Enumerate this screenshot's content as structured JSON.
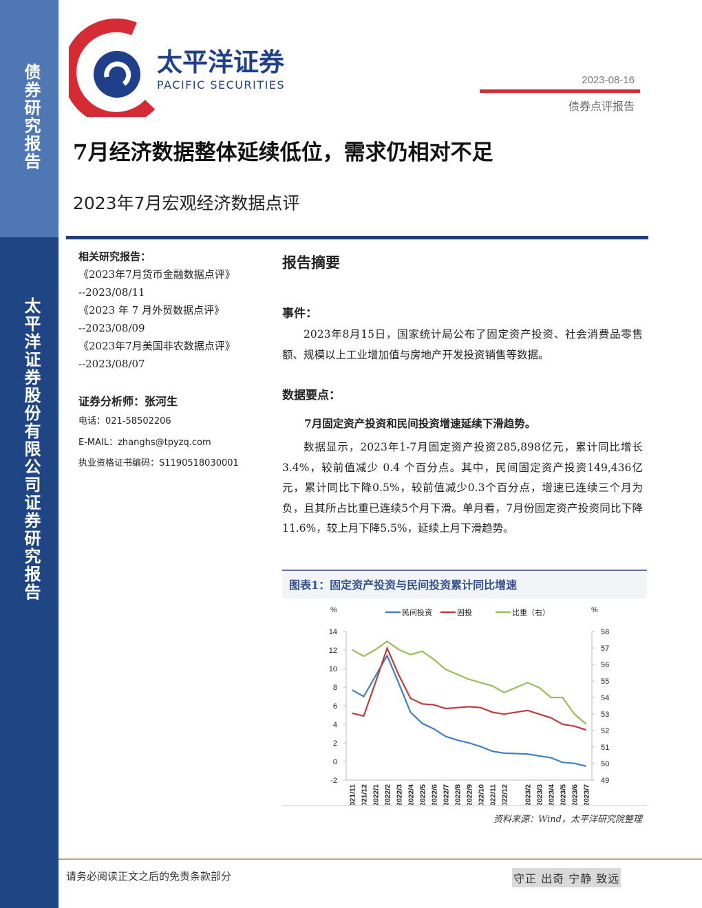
{
  "sidebar": {
    "top": "债券研究报告",
    "bottom": "太平洋证券股份有限公司证券研究报告"
  },
  "logo": {
    "cn": "太平洋证券",
    "en": "PACIFIC SECURITIES"
  },
  "header": {
    "date": "2023-08-16",
    "type": "债券点评报告"
  },
  "title": "7月经济数据整体延续低位，需求仍相对不足",
  "subtitle": "2023年7月宏观经济数据点评",
  "related": {
    "heading": "相关研究报告：",
    "items": [
      {
        "title": "《2023年7月货币金融数据点评》",
        "date": "--2023/08/11"
      },
      {
        "title": "《2023 年 7 月外贸数据点评》",
        "date": "--2023/08/09"
      },
      {
        "title": "《2023年7月美国非农数据点评》",
        "date": "--2023/08/07"
      }
    ]
  },
  "analyst": {
    "name": "证券分析师：张河生",
    "phone": "电话：021-58502206",
    "email": "E-MAIL：zhanghs@tpyzq.com",
    "license": "执业资格证书编码：S1190518030001"
  },
  "summary": {
    "heading": "报告摘要",
    "event_heading": "事件：",
    "event": "2023年8月15日，国家统计局公布了固定资产投资、社会消费品零售额、规模以上工业增加值与房地产开发投资销售等数据。",
    "points_heading": "数据要点：",
    "point1": "7月固定资产投资和民间投资增速延续下滑趋势。",
    "point1_text": "数据显示，2023年1-7月固定资产投资285,898亿元，累计同比增长 3.4%，较前值减少 0.4 个百分点。其中，民间固定资产投资149,436亿元，累计同比下降0.5%，较前值减少0.3个百分点，增速已连续三个月为负，且其所占比重已连续5个月下滑。单月看，7月份固定资产投资同比下降11.6%，较上月下降5.5%，延续上月下滑趋势。"
  },
  "figure": {
    "caption": "图表1：固定资产投资与民间投资累计同比增速",
    "source": "资料来源：Wind，太平洋研究院整理"
  },
  "chart_data": {
    "type": "line",
    "y_unit": "%",
    "y2_unit": "%",
    "categories": [
      "2021/11",
      "2021/12",
      "2022/1",
      "2022/2",
      "2022/3",
      "2022/4",
      "2022/5",
      "2022/6",
      "2022/7",
      "2022/8",
      "2022/9",
      "2022/10",
      "2022/11",
      "2022/12",
      null,
      "2023/2",
      "2023/3",
      "2023/4",
      "2023/5",
      "2023/6",
      "2023/7"
    ],
    "series": [
      {
        "name": "民间投资",
        "color": "#3f7fc1",
        "values": [
          7.7,
          7.0,
          9.2,
          11.4,
          8.4,
          5.3,
          4.1,
          3.5,
          2.7,
          2.3,
          2.0,
          1.6,
          1.1,
          0.9,
          0.85,
          0.8,
          0.6,
          0.4,
          -0.1,
          -0.2,
          -0.5
        ]
      },
      {
        "name": "固投",
        "color": "#c0393b",
        "values": [
          5.2,
          4.9,
          8.5,
          12.2,
          9.3,
          6.8,
          6.2,
          6.1,
          5.7,
          5.8,
          5.9,
          5.8,
          5.3,
          5.1,
          5.3,
          5.5,
          5.1,
          4.7,
          4.0,
          3.8,
          3.4
        ]
      },
      {
        "name": "比重（右）",
        "color": "#9bbb59",
        "axis": "y2",
        "values": [
          56.9,
          56.5,
          56.9,
          57.4,
          56.9,
          56.6,
          56.8,
          56.3,
          55.7,
          55.4,
          55.1,
          54.9,
          54.7,
          54.3,
          54.6,
          54.9,
          54.6,
          54.0,
          54.0,
          53.0,
          52.4
        ]
      }
    ],
    "ylim": [
      -2,
      14
    ],
    "yticks": [
      -2,
      0,
      2,
      4,
      6,
      8,
      10,
      12,
      14
    ],
    "y2lim": [
      49,
      58
    ],
    "y2ticks": [
      49,
      50,
      51,
      52,
      53,
      54,
      55,
      56,
      57,
      58
    ]
  }
}
